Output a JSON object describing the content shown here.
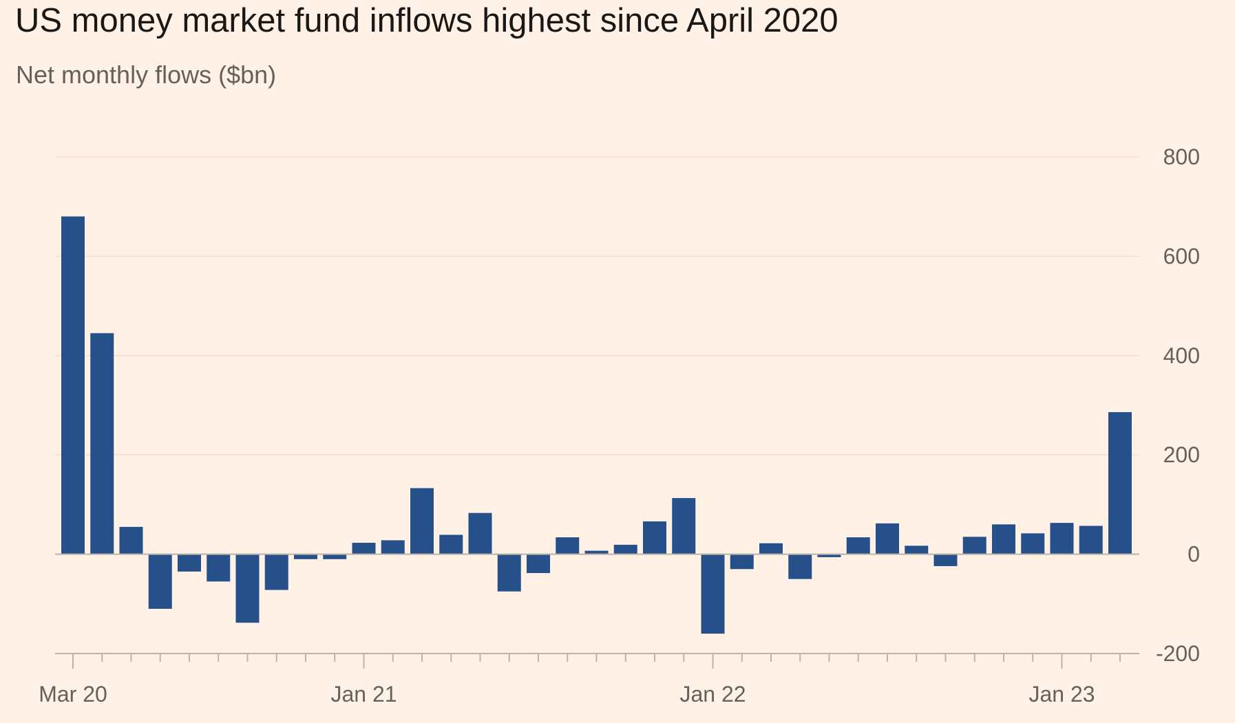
{
  "title": "US money market fund inflows highest since April 2020",
  "subtitle": "Net monthly flows ($bn)",
  "colors": {
    "background": "#fff1e5",
    "bar": "#26508a",
    "gridline": "#f2dfce",
    "zero_line": "#bcb2a7",
    "tick_label": "#66605c",
    "title": "#1a1817"
  },
  "chart_data": {
    "type": "bar",
    "title": "US money market fund inflows highest since April 2020",
    "subtitle": "Net monthly flows ($bn)",
    "xlabel": "",
    "ylabel": "",
    "ylim": [
      -200,
      800
    ],
    "yticks": [
      800,
      600,
      400,
      200,
      0,
      -200
    ],
    "y_axis_side": "right",
    "grid": true,
    "legend": "none",
    "x_tick_labels": [
      {
        "label": "Mar 20",
        "index": 0
      },
      {
        "label": "Jan 21",
        "index": 10
      },
      {
        "label": "Jan 22",
        "index": 22
      },
      {
        "label": "Jan 23",
        "index": 34
      }
    ],
    "categories": [
      "Mar 20",
      "Apr 20",
      "May 20",
      "Jun 20",
      "Jul 20",
      "Aug 20",
      "Sep 20",
      "Oct 20",
      "Nov 20",
      "Dec 20",
      "Jan 21",
      "Feb 21",
      "Mar 21",
      "Apr 21",
      "May 21",
      "Jun 21",
      "Jul 21",
      "Aug 21",
      "Sep 21",
      "Oct 21",
      "Nov 21",
      "Dec 21",
      "Jan 22",
      "Feb 22",
      "Mar 22",
      "Apr 22",
      "May 22",
      "Jun 22",
      "Jul 22",
      "Aug 22",
      "Sep 22",
      "Oct 22",
      "Nov 22",
      "Dec 22",
      "Jan 23",
      "Feb 23",
      "Mar 23"
    ],
    "values": [
      680,
      445,
      55,
      -110,
      -35,
      -55,
      -138,
      -72,
      -10,
      -10,
      23,
      28,
      133,
      39,
      83,
      -75,
      -38,
      34,
      7,
      19,
      66,
      113,
      -160,
      -30,
      22,
      -50,
      -6,
      34,
      62,
      17,
      -24,
      35,
      60,
      42,
      63,
      57,
      286
    ]
  }
}
